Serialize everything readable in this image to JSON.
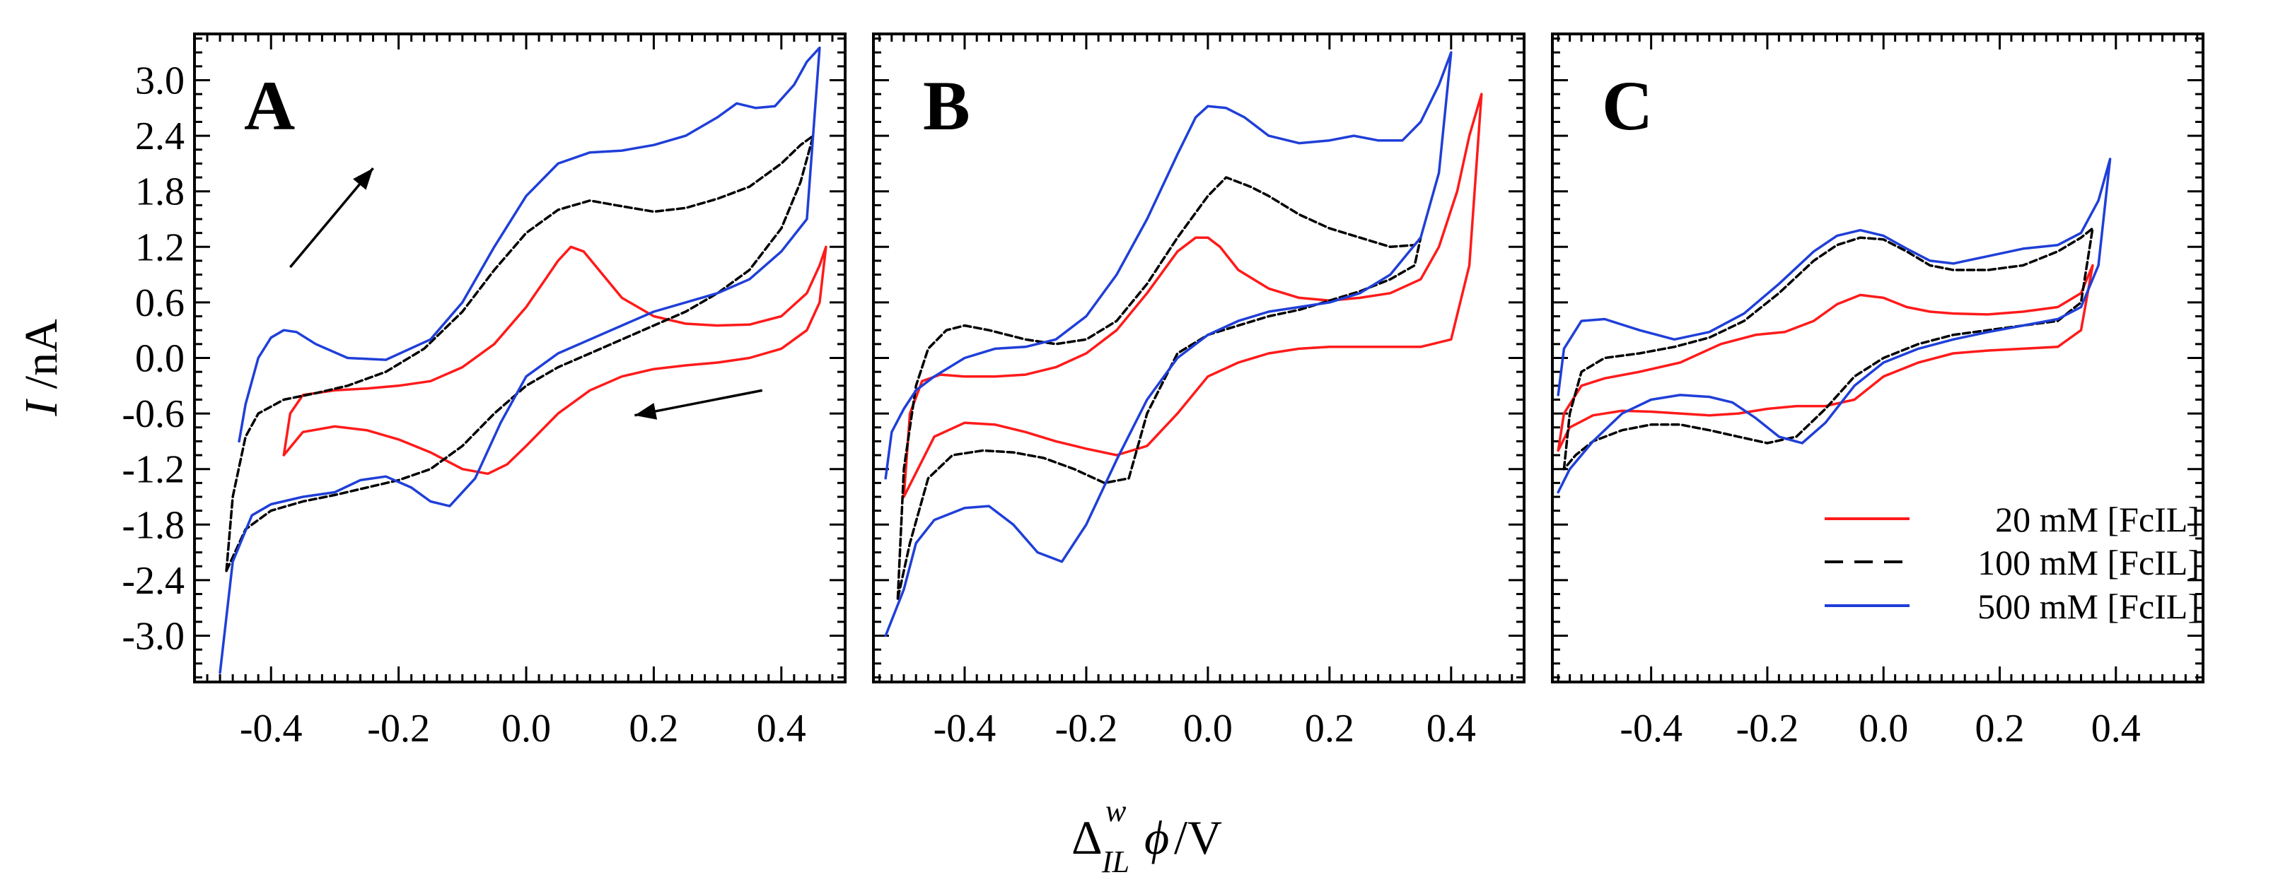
{
  "figure": {
    "ylabel_italic": "I",
    "ylabel_unit": " /nA",
    "xlabel": {
      "base": "Δ",
      "superscript": "w",
      "subscript": "IL",
      "symbol": "ϕ",
      "unit": " /V"
    }
  },
  "legend": {
    "placement": "bottom-right of panel C",
    "entries": [
      {
        "label": "20 mM [FcIL]",
        "color": "#ff1a1a",
        "dash": "solid"
      },
      {
        "label": "100 mM [FcIL]",
        "color": "#000000",
        "dash": "dashed"
      },
      {
        "label": "500 mM [FcIL]",
        "color": "#1f3fd8",
        "dash": "solid"
      }
    ]
  },
  "chart_data": [
    {
      "type": "line",
      "panel_label": "A",
      "xlim": [
        -0.52,
        0.5
      ],
      "ylim": [
        -3.5,
        3.5
      ],
      "xticks": [
        -0.4,
        -0.2,
        0.0,
        0.2,
        0.4
      ],
      "xtick_labels": [
        "-0.4",
        "-0.2",
        "0.0",
        "0.2",
        "0.4"
      ],
      "yticks": [
        -3.0,
        -2.4,
        -1.8,
        -1.2,
        -0.6,
        0.0,
        0.6,
        1.2,
        1.8,
        2.4,
        3.0
      ],
      "ytick_labels": [
        "-3.0",
        "-2.4",
        "-1.8",
        "-1.2",
        "-0.6",
        "0.0",
        "0.6",
        "1.2",
        "1.8",
        "2.4",
        "3.0"
      ],
      "show_ytick_labels": true,
      "arrows": [
        {
          "from": [
            -0.37,
            0.98
          ],
          "to": [
            -0.24,
            2.05
          ]
        },
        {
          "from": [
            0.37,
            -0.35
          ],
          "to": [
            0.17,
            -0.62
          ]
        }
      ],
      "series": [
        {
          "name": "20 mM [FcIL]",
          "x": [
            -0.38,
            -0.37,
            -0.35,
            -0.3,
            -0.25,
            -0.2,
            -0.15,
            -0.1,
            -0.05,
            0.0,
            0.03,
            0.05,
            0.07,
            0.09,
            0.12,
            0.15,
            0.2,
            0.25,
            0.3,
            0.35,
            0.4,
            0.44,
            0.46,
            0.47,
            0.46,
            0.44,
            0.4,
            0.35,
            0.3,
            0.25,
            0.2,
            0.15,
            0.1,
            0.05,
            0.0,
            -0.03,
            -0.06,
            -0.1,
            -0.15,
            -0.2,
            -0.25,
            -0.3,
            -0.35,
            -0.38
          ],
          "y": [
            -1.05,
            -0.6,
            -0.4,
            -0.35,
            -0.33,
            -0.3,
            -0.25,
            -0.1,
            0.15,
            0.55,
            0.85,
            1.05,
            1.2,
            1.15,
            0.9,
            0.65,
            0.45,
            0.37,
            0.35,
            0.36,
            0.45,
            0.7,
            1.0,
            1.2,
            0.6,
            0.3,
            0.1,
            0.0,
            -0.05,
            -0.08,
            -0.12,
            -0.2,
            -0.35,
            -0.6,
            -0.95,
            -1.15,
            -1.25,
            -1.2,
            -1.02,
            -0.88,
            -0.78,
            -0.74,
            -0.8,
            -1.05
          ]
        },
        {
          "name": "100 mM [FcIL]",
          "x": [
            -0.47,
            -0.46,
            -0.44,
            -0.42,
            -0.38,
            -0.33,
            -0.28,
            -0.22,
            -0.16,
            -0.1,
            -0.05,
            0.0,
            0.05,
            0.1,
            0.14,
            0.2,
            0.25,
            0.3,
            0.35,
            0.4,
            0.43,
            0.45,
            0.43,
            0.4,
            0.35,
            0.3,
            0.25,
            0.2,
            0.15,
            0.1,
            0.05,
            0.0,
            -0.05,
            -0.1,
            -0.15,
            -0.2,
            -0.25,
            -0.3,
            -0.35,
            -0.4,
            -0.44,
            -0.47
          ],
          "y": [
            -2.3,
            -1.5,
            -0.85,
            -0.6,
            -0.45,
            -0.38,
            -0.3,
            -0.15,
            0.1,
            0.5,
            0.95,
            1.35,
            1.6,
            1.7,
            1.65,
            1.58,
            1.62,
            1.72,
            1.85,
            2.1,
            2.3,
            2.4,
            1.9,
            1.4,
            0.95,
            0.7,
            0.5,
            0.35,
            0.2,
            0.05,
            -0.1,
            -0.3,
            -0.6,
            -0.95,
            -1.2,
            -1.32,
            -1.4,
            -1.48,
            -1.55,
            -1.65,
            -1.85,
            -2.3
          ]
        },
        {
          "name": "500 mM [FcIL]",
          "x": [
            -0.45,
            -0.44,
            -0.42,
            -0.4,
            -0.38,
            -0.36,
            -0.33,
            -0.28,
            -0.22,
            -0.15,
            -0.1,
            -0.05,
            0.0,
            0.05,
            0.1,
            0.15,
            0.2,
            0.25,
            0.3,
            0.33,
            0.36,
            0.39,
            0.42,
            0.44,
            0.46,
            0.44,
            0.4,
            0.35,
            0.3,
            0.25,
            0.2,
            0.15,
            0.1,
            0.05,
            0.0,
            -0.04,
            -0.08,
            -0.12,
            -0.15,
            -0.18,
            -0.22,
            -0.26,
            -0.3,
            -0.35,
            -0.4,
            -0.43,
            -0.46,
            -0.48
          ],
          "y": [
            -0.9,
            -0.5,
            0.0,
            0.22,
            0.3,
            0.28,
            0.15,
            0.0,
            -0.02,
            0.2,
            0.6,
            1.2,
            1.75,
            2.1,
            2.22,
            2.24,
            2.3,
            2.4,
            2.6,
            2.75,
            2.7,
            2.72,
            2.95,
            3.2,
            3.35,
            1.5,
            1.15,
            0.85,
            0.7,
            0.6,
            0.5,
            0.35,
            0.2,
            0.05,
            -0.2,
            -0.7,
            -1.3,
            -1.6,
            -1.55,
            -1.4,
            -1.28,
            -1.32,
            -1.45,
            -1.5,
            -1.58,
            -1.7,
            -2.2,
            -3.4
          ]
        }
      ]
    },
    {
      "type": "line",
      "panel_label": "B",
      "xlim": [
        -0.55,
        0.52
      ],
      "ylim": [
        -3.5,
        3.5
      ],
      "xticks": [
        -0.4,
        -0.2,
        0.0,
        0.2,
        0.4
      ],
      "xtick_labels": [
        "-0.4",
        "-0.2",
        "0.0",
        "0.2",
        "0.4"
      ],
      "yticks": [
        -3.0,
        -2.4,
        -1.8,
        -1.2,
        -0.6,
        0.0,
        0.6,
        1.2,
        1.8,
        2.4,
        3.0
      ],
      "show_ytick_labels": false,
      "series": [
        {
          "name": "20 mM [FcIL]",
          "x": [
            -0.5,
            -0.49,
            -0.47,
            -0.44,
            -0.4,
            -0.35,
            -0.3,
            -0.25,
            -0.2,
            -0.15,
            -0.1,
            -0.05,
            -0.02,
            0.0,
            0.02,
            0.05,
            0.1,
            0.15,
            0.2,
            0.25,
            0.3,
            0.35,
            0.38,
            0.41,
            0.43,
            0.45,
            0.43,
            0.4,
            0.35,
            0.3,
            0.25,
            0.2,
            0.15,
            0.1,
            0.05,
            0.0,
            -0.05,
            -0.1,
            -0.15,
            -0.2,
            -0.25,
            -0.3,
            -0.35,
            -0.4,
            -0.45,
            -0.5
          ],
          "y": [
            -1.5,
            -0.6,
            -0.25,
            -0.18,
            -0.2,
            -0.2,
            -0.18,
            -0.1,
            0.05,
            0.3,
            0.7,
            1.15,
            1.3,
            1.3,
            1.2,
            0.95,
            0.75,
            0.65,
            0.62,
            0.65,
            0.7,
            0.85,
            1.2,
            1.8,
            2.4,
            2.85,
            1.0,
            0.2,
            0.12,
            0.12,
            0.12,
            0.12,
            0.1,
            0.05,
            -0.05,
            -0.2,
            -0.6,
            -0.95,
            -1.05,
            -0.98,
            -0.9,
            -0.8,
            -0.72,
            -0.7,
            -0.85,
            -1.5
          ]
        },
        {
          "name": "100 mM [FcIL]",
          "x": [
            -0.51,
            -0.5,
            -0.48,
            -0.46,
            -0.43,
            -0.4,
            -0.36,
            -0.3,
            -0.25,
            -0.2,
            -0.15,
            -0.1,
            -0.05,
            0.0,
            0.03,
            0.07,
            0.1,
            0.15,
            0.2,
            0.25,
            0.3,
            0.34,
            0.35,
            0.34,
            0.3,
            0.25,
            0.2,
            0.15,
            0.1,
            0.05,
            0.0,
            -0.05,
            -0.1,
            -0.13,
            -0.17,
            -0.22,
            -0.27,
            -0.32,
            -0.37,
            -0.42,
            -0.46,
            -0.49,
            -0.51
          ],
          "y": [
            -2.6,
            -1.2,
            -0.3,
            0.1,
            0.3,
            0.35,
            0.3,
            0.2,
            0.15,
            0.2,
            0.4,
            0.8,
            1.3,
            1.75,
            1.95,
            1.85,
            1.75,
            1.55,
            1.4,
            1.3,
            1.2,
            1.22,
            1.3,
            1.0,
            0.85,
            0.72,
            0.62,
            0.52,
            0.45,
            0.35,
            0.25,
            0.05,
            -0.6,
            -1.3,
            -1.35,
            -1.2,
            -1.08,
            -1.02,
            -1.0,
            -1.05,
            -1.3,
            -2.0,
            -2.6
          ]
        },
        {
          "name": "500 mM [FcIL]",
          "x": [
            -0.53,
            -0.52,
            -0.5,
            -0.48,
            -0.45,
            -0.4,
            -0.35,
            -0.3,
            -0.25,
            -0.2,
            -0.15,
            -0.1,
            -0.05,
            -0.02,
            0.0,
            0.03,
            0.06,
            0.1,
            0.15,
            0.2,
            0.24,
            0.28,
            0.32,
            0.35,
            0.38,
            0.4,
            0.38,
            0.35,
            0.3,
            0.25,
            0.2,
            0.15,
            0.1,
            0.05,
            0.0,
            -0.05,
            -0.1,
            -0.15,
            -0.2,
            -0.24,
            -0.28,
            -0.32,
            -0.36,
            -0.4,
            -0.45,
            -0.48,
            -0.5,
            -0.53
          ],
          "y": [
            -1.3,
            -0.8,
            -0.55,
            -0.35,
            -0.2,
            0.0,
            0.1,
            0.12,
            0.2,
            0.45,
            0.9,
            1.5,
            2.2,
            2.6,
            2.72,
            2.7,
            2.6,
            2.4,
            2.32,
            2.35,
            2.4,
            2.35,
            2.35,
            2.55,
            2.95,
            3.3,
            2.0,
            1.3,
            0.9,
            0.7,
            0.6,
            0.55,
            0.5,
            0.4,
            0.25,
            0.0,
            -0.45,
            -1.1,
            -1.8,
            -2.2,
            -2.1,
            -1.8,
            -1.6,
            -1.62,
            -1.75,
            -2.0,
            -2.5,
            -3.0
          ]
        }
      ]
    },
    {
      "type": "line",
      "panel_label": "C",
      "xlim": [
        -0.57,
        0.55
      ],
      "ylim": [
        -3.5,
        3.5
      ],
      "xticks": [
        -0.4,
        -0.2,
        0.0,
        0.2,
        0.4
      ],
      "xtick_labels": [
        "-0.4",
        "-0.2",
        "0.0",
        "0.2",
        "0.4"
      ],
      "yticks": [
        -3.0,
        -2.4,
        -1.8,
        -1.2,
        -0.6,
        0.0,
        0.6,
        1.2,
        1.8,
        2.4,
        3.0
      ],
      "show_ytick_labels": false,
      "series": [
        {
          "name": "20 mM [FcIL]",
          "x": [
            -0.56,
            -0.55,
            -0.52,
            -0.48,
            -0.42,
            -0.35,
            -0.28,
            -0.22,
            -0.17,
            -0.12,
            -0.08,
            -0.04,
            0.0,
            0.04,
            0.08,
            0.12,
            0.18,
            0.24,
            0.3,
            0.34,
            0.36,
            0.34,
            0.3,
            0.24,
            0.18,
            0.12,
            0.06,
            0.0,
            -0.05,
            -0.1,
            -0.15,
            -0.2,
            -0.25,
            -0.3,
            -0.35,
            -0.4,
            -0.45,
            -0.5,
            -0.54,
            -0.56
          ],
          "y": [
            -1.0,
            -0.6,
            -0.3,
            -0.22,
            -0.15,
            -0.05,
            0.15,
            0.25,
            0.28,
            0.4,
            0.58,
            0.68,
            0.65,
            0.55,
            0.5,
            0.48,
            0.47,
            0.5,
            0.55,
            0.7,
            1.0,
            0.3,
            0.12,
            0.1,
            0.08,
            0.05,
            -0.05,
            -0.2,
            -0.45,
            -0.52,
            -0.52,
            -0.55,
            -0.6,
            -0.62,
            -0.6,
            -0.58,
            -0.57,
            -0.62,
            -0.75,
            -1.0
          ]
        },
        {
          "name": "100 mM [FcIL]",
          "x": [
            -0.55,
            -0.54,
            -0.52,
            -0.48,
            -0.42,
            -0.36,
            -0.3,
            -0.24,
            -0.18,
            -0.12,
            -0.08,
            -0.04,
            0.0,
            0.04,
            0.08,
            0.12,
            0.18,
            0.24,
            0.3,
            0.34,
            0.36,
            0.34,
            0.3,
            0.24,
            0.18,
            0.12,
            0.06,
            0.0,
            -0.05,
            -0.1,
            -0.15,
            -0.2,
            -0.25,
            -0.3,
            -0.35,
            -0.4,
            -0.45,
            -0.5,
            -0.53,
            -0.55
          ],
          "y": [
            -1.2,
            -0.6,
            -0.15,
            0.0,
            0.05,
            0.12,
            0.22,
            0.4,
            0.7,
            1.05,
            1.22,
            1.3,
            1.28,
            1.15,
            1.0,
            0.95,
            0.95,
            1.0,
            1.15,
            1.3,
            1.4,
            0.6,
            0.4,
            0.35,
            0.3,
            0.25,
            0.15,
            0.0,
            -0.2,
            -0.55,
            -0.85,
            -0.92,
            -0.85,
            -0.78,
            -0.72,
            -0.72,
            -0.78,
            -0.9,
            -1.05,
            -1.2
          ]
        },
        {
          "name": "500 mM [FcIL]",
          "x": [
            -0.56,
            -0.55,
            -0.52,
            -0.48,
            -0.42,
            -0.36,
            -0.3,
            -0.24,
            -0.18,
            -0.12,
            -0.08,
            -0.04,
            0.0,
            0.04,
            0.08,
            0.12,
            0.18,
            0.24,
            0.3,
            0.34,
            0.37,
            0.39,
            0.37,
            0.34,
            0.3,
            0.24,
            0.18,
            0.12,
            0.06,
            0.0,
            -0.05,
            -0.1,
            -0.14,
            -0.18,
            -0.22,
            -0.26,
            -0.3,
            -0.35,
            -0.4,
            -0.45,
            -0.5,
            -0.54,
            -0.56
          ],
          "y": [
            -0.4,
            0.1,
            0.4,
            0.42,
            0.3,
            0.2,
            0.28,
            0.48,
            0.8,
            1.15,
            1.32,
            1.38,
            1.32,
            1.18,
            1.05,
            1.02,
            1.1,
            1.18,
            1.22,
            1.35,
            1.7,
            2.15,
            1.0,
            0.55,
            0.42,
            0.35,
            0.28,
            0.2,
            0.1,
            -0.05,
            -0.3,
            -0.7,
            -0.92,
            -0.85,
            -0.65,
            -0.48,
            -0.42,
            -0.4,
            -0.45,
            -0.6,
            -0.9,
            -1.2,
            -1.45
          ]
        }
      ]
    }
  ]
}
